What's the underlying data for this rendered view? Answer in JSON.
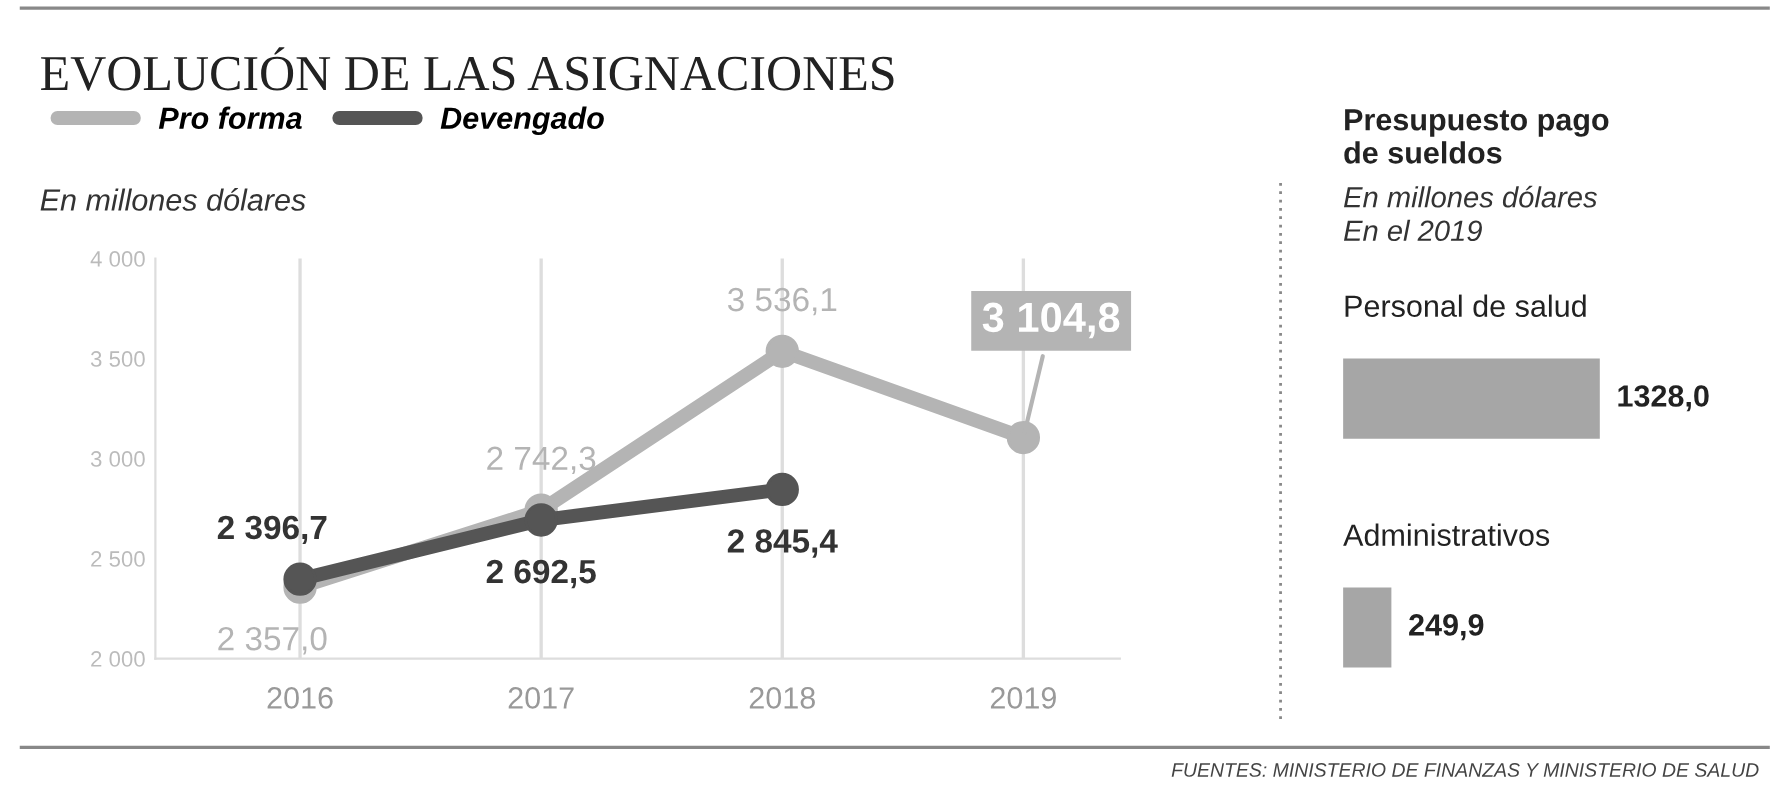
{
  "chart_data": [
    {
      "type": "line",
      "title": "EVOLUCIÓN DE LAS ASIGNACIONES",
      "ylabel": "En millones dólares",
      "categories": [
        "2016",
        "2017",
        "2018",
        "2019"
      ],
      "series": [
        {
          "name": "Pro forma",
          "color": "#b4b4b4",
          "values": [
            2357.0,
            2742.3,
            3536.1,
            3104.8
          ],
          "value_labels": [
            "2 357,0",
            "2 742,3",
            "3 536,1",
            "3 104,8"
          ]
        },
        {
          "name": "Devengado",
          "color": "#555555",
          "values": [
            2396.7,
            2692.5,
            2845.4,
            null
          ],
          "value_labels": [
            "2 396,7",
            "2 692,5",
            "2 845,4",
            null
          ]
        }
      ],
      "ylim": [
        2000,
        4000
      ],
      "yticks": [
        {
          "value": 2000,
          "label": "2 000"
        },
        {
          "value": 2500,
          "label": "2 500"
        },
        {
          "value": 3000,
          "label": "3 000"
        },
        {
          "value": 3500,
          "label": "3 500"
        },
        {
          "value": 4000,
          "label": "4 000"
        }
      ],
      "grid": "x",
      "legend": "top left",
      "marker": "circle",
      "line_style": "solid",
      "annotations": [
        "FUENTES: MINISTERIO DE FINANZAS Y MINISTERIO DE SALUD"
      ]
    },
    {
      "type": "bar",
      "orientation": "horizontal",
      "title": "Presupuesto pago de sueldos",
      "subtitle": "En millones dólares\nEn el 2019",
      "categories": [
        "Personal de salud",
        "Administrativos"
      ],
      "values": [
        1328.0,
        249.9
      ],
      "value_labels": [
        "1328,0",
        "249,9"
      ],
      "color": "#a6a6a6"
    }
  ]
}
